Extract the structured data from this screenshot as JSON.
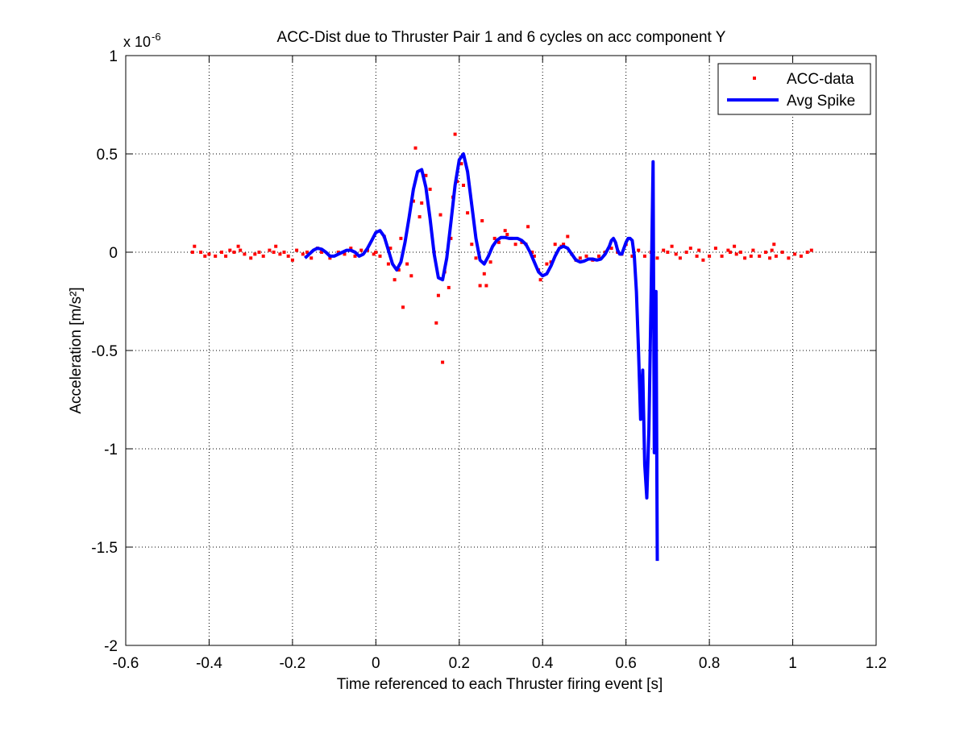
{
  "chart_data": {
    "type": "line",
    "title": "ACC-Dist due to Thruster Pair 1 and 6 cycles on acc component Y",
    "xlabel": "Time referenced to each Thruster firing event [s]",
    "ylabel": "Acceleration [m/s²]",
    "y_exponent_label": "x 10",
    "y_exponent_power": "-6",
    "xlim": [
      -0.6,
      1.2
    ],
    "ylim": [
      -2,
      1
    ],
    "y_scale": 1e-06,
    "xticks": [
      -0.6,
      -0.4,
      -0.2,
      0,
      0.2,
      0.4,
      0.6,
      0.8,
      1,
      1.2
    ],
    "xtick_labels": [
      "-0.6",
      "-0.4",
      "-0.2",
      "0",
      "0.2",
      "0.4",
      "0.6",
      "0.8",
      "1",
      "1.2"
    ],
    "yticks": [
      -2,
      -1.5,
      -1,
      -0.5,
      0,
      0.5,
      1
    ],
    "ytick_labels": [
      "-2",
      "-1.5",
      "-1",
      "-0.5",
      "0",
      "0.5",
      "1"
    ],
    "grid": true,
    "legend_position": "top-right",
    "series": [
      {
        "name": "ACC-data",
        "kind": "scatter",
        "color": "#ff0000",
        "points": [
          [
            -0.44,
            0.0
          ],
          [
            -0.435,
            0.03
          ],
          [
            -0.42,
            0.0
          ],
          [
            -0.41,
            -0.02
          ],
          [
            -0.4,
            -0.01
          ],
          [
            -0.385,
            -0.02
          ],
          [
            -0.37,
            0.0
          ],
          [
            -0.36,
            -0.02
          ],
          [
            -0.35,
            0.01
          ],
          [
            -0.34,
            0.0
          ],
          [
            -0.33,
            0.03
          ],
          [
            -0.325,
            0.01
          ],
          [
            -0.315,
            -0.01
          ],
          [
            -0.3,
            -0.03
          ],
          [
            -0.29,
            -0.01
          ],
          [
            -0.28,
            0.0
          ],
          [
            -0.27,
            -0.02
          ],
          [
            -0.255,
            0.01
          ],
          [
            -0.245,
            0.0
          ],
          [
            -0.24,
            0.03
          ],
          [
            -0.23,
            -0.01
          ],
          [
            -0.22,
            0.0
          ],
          [
            -0.21,
            -0.02
          ],
          [
            -0.2,
            -0.04
          ],
          [
            -0.19,
            0.01
          ],
          [
            -0.175,
            -0.01
          ],
          [
            -0.165,
            0.0
          ],
          [
            -0.155,
            -0.03
          ],
          [
            -0.14,
            0.02
          ],
          [
            -0.13,
            0.0
          ],
          [
            -0.11,
            -0.03
          ],
          [
            -0.09,
            0.0
          ],
          [
            -0.075,
            -0.01
          ],
          [
            -0.06,
            0.02
          ],
          [
            -0.05,
            -0.02
          ],
          [
            -0.035,
            0.01
          ],
          [
            -0.02,
            0.01
          ],
          [
            -0.005,
            -0.01
          ],
          [
            0.0,
            0.0
          ],
          [
            0.01,
            -0.02
          ],
          [
            0.02,
            0.08
          ],
          [
            0.03,
            -0.06
          ],
          [
            0.035,
            0.02
          ],
          [
            0.045,
            -0.14
          ],
          [
            0.055,
            -0.09
          ],
          [
            0.06,
            0.07
          ],
          [
            0.065,
            -0.28
          ],
          [
            0.075,
            -0.06
          ],
          [
            0.085,
            -0.12
          ],
          [
            0.09,
            0.26
          ],
          [
            0.095,
            0.53
          ],
          [
            0.105,
            0.18
          ],
          [
            0.11,
            0.25
          ],
          [
            0.12,
            0.39
          ],
          [
            0.13,
            0.32
          ],
          [
            0.14,
            0.0
          ],
          [
            0.145,
            -0.36
          ],
          [
            0.15,
            -0.22
          ],
          [
            0.155,
            0.19
          ],
          [
            0.16,
            -0.56
          ],
          [
            0.165,
            -0.1
          ],
          [
            0.175,
            -0.18
          ],
          [
            0.18,
            0.07
          ],
          [
            0.185,
            0.28
          ],
          [
            0.19,
            0.6
          ],
          [
            0.195,
            0.36
          ],
          [
            0.205,
            0.45
          ],
          [
            0.21,
            0.34
          ],
          [
            0.22,
            0.2
          ],
          [
            0.23,
            0.04
          ],
          [
            0.24,
            -0.03
          ],
          [
            0.25,
            -0.17
          ],
          [
            0.255,
            0.16
          ],
          [
            0.26,
            -0.11
          ],
          [
            0.265,
            -0.17
          ],
          [
            0.275,
            -0.05
          ],
          [
            0.285,
            0.07
          ],
          [
            0.295,
            0.05
          ],
          [
            0.31,
            0.11
          ],
          [
            0.315,
            0.09
          ],
          [
            0.325,
            0.07
          ],
          [
            0.335,
            0.04
          ],
          [
            0.35,
            0.05
          ],
          [
            0.36,
            0.04
          ],
          [
            0.365,
            0.13
          ],
          [
            0.375,
            0.0
          ],
          [
            0.38,
            -0.02
          ],
          [
            0.39,
            -0.09
          ],
          [
            0.395,
            -0.14
          ],
          [
            0.41,
            -0.06
          ],
          [
            0.42,
            -0.05
          ],
          [
            0.43,
            0.04
          ],
          [
            0.445,
            0.03
          ],
          [
            0.45,
            0.04
          ],
          [
            0.46,
            0.08
          ],
          [
            0.47,
            -0.01
          ],
          [
            0.48,
            -0.04
          ],
          [
            0.49,
            -0.03
          ],
          [
            0.505,
            -0.02
          ],
          [
            0.52,
            -0.04
          ],
          [
            0.535,
            -0.02
          ],
          [
            0.55,
            0.0
          ],
          [
            0.565,
            0.02
          ],
          [
            0.58,
            0.0
          ],
          [
            0.59,
            -0.01
          ],
          [
            0.6,
            0.04
          ],
          [
            0.615,
            -0.02
          ],
          [
            0.63,
            0.01
          ],
          [
            0.645,
            -0.02
          ],
          [
            0.66,
            0.0
          ],
          [
            0.675,
            -0.03
          ],
          [
            0.69,
            0.01
          ],
          [
            0.7,
            0.0
          ],
          [
            0.71,
            0.03
          ],
          [
            0.72,
            -0.01
          ],
          [
            0.73,
            -0.03
          ],
          [
            0.745,
            0.0
          ],
          [
            0.755,
            0.02
          ],
          [
            0.77,
            -0.02
          ],
          [
            0.775,
            0.01
          ],
          [
            0.785,
            -0.04
          ],
          [
            0.8,
            -0.02
          ],
          [
            0.815,
            0.02
          ],
          [
            0.83,
            -0.02
          ],
          [
            0.845,
            0.01
          ],
          [
            0.85,
            0.0
          ],
          [
            0.86,
            0.03
          ],
          [
            0.865,
            -0.01
          ],
          [
            0.875,
            0.0
          ],
          [
            0.885,
            -0.03
          ],
          [
            0.9,
            -0.02
          ],
          [
            0.905,
            0.01
          ],
          [
            0.92,
            -0.02
          ],
          [
            0.935,
            0.0
          ],
          [
            0.945,
            -0.03
          ],
          [
            0.95,
            0.01
          ],
          [
            0.955,
            0.04
          ],
          [
            0.96,
            -0.02
          ],
          [
            0.975,
            0.0
          ],
          [
            0.99,
            -0.03
          ],
          [
            1.005,
            -0.01
          ],
          [
            1.02,
            -0.02
          ],
          [
            1.035,
            0.0
          ],
          [
            1.045,
            0.01
          ]
        ]
      },
      {
        "name": "Avg Spike",
        "kind": "line",
        "color": "#0000ff",
        "points": [
          [
            -0.17,
            -0.03
          ],
          [
            -0.16,
            -0.01
          ],
          [
            -0.15,
            0.01
          ],
          [
            -0.14,
            0.02
          ],
          [
            -0.13,
            0.015
          ],
          [
            -0.12,
            0.0
          ],
          [
            -0.11,
            -0.02
          ],
          [
            -0.1,
            -0.02
          ],
          [
            -0.09,
            -0.01
          ],
          [
            -0.08,
            0.0
          ],
          [
            -0.07,
            0.01
          ],
          [
            -0.06,
            0.01
          ],
          [
            -0.05,
            0.0
          ],
          [
            -0.04,
            -0.02
          ],
          [
            -0.03,
            -0.01
          ],
          [
            -0.02,
            0.02
          ],
          [
            -0.01,
            0.06
          ],
          [
            0.0,
            0.1
          ],
          [
            0.01,
            0.11
          ],
          [
            0.02,
            0.08
          ],
          [
            0.03,
            0.01
          ],
          [
            0.04,
            -0.06
          ],
          [
            0.05,
            -0.09
          ],
          [
            0.06,
            -0.05
          ],
          [
            0.07,
            0.05
          ],
          [
            0.08,
            0.18
          ],
          [
            0.09,
            0.32
          ],
          [
            0.1,
            0.41
          ],
          [
            0.11,
            0.42
          ],
          [
            0.12,
            0.33
          ],
          [
            0.13,
            0.17
          ],
          [
            0.14,
            -0.01
          ],
          [
            0.15,
            -0.13
          ],
          [
            0.16,
            -0.14
          ],
          [
            0.17,
            -0.03
          ],
          [
            0.18,
            0.15
          ],
          [
            0.19,
            0.34
          ],
          [
            0.2,
            0.47
          ],
          [
            0.21,
            0.5
          ],
          [
            0.22,
            0.41
          ],
          [
            0.23,
            0.24
          ],
          [
            0.24,
            0.07
          ],
          [
            0.25,
            -0.04
          ],
          [
            0.26,
            -0.06
          ],
          [
            0.27,
            -0.02
          ],
          [
            0.28,
            0.03
          ],
          [
            0.29,
            0.06
          ],
          [
            0.3,
            0.075
          ],
          [
            0.31,
            0.075
          ],
          [
            0.32,
            0.07
          ],
          [
            0.33,
            0.07
          ],
          [
            0.34,
            0.07
          ],
          [
            0.35,
            0.06
          ],
          [
            0.36,
            0.04
          ],
          [
            0.37,
            0.0
          ],
          [
            0.38,
            -0.05
          ],
          [
            0.39,
            -0.1
          ],
          [
            0.4,
            -0.12
          ],
          [
            0.41,
            -0.11
          ],
          [
            0.42,
            -0.07
          ],
          [
            0.43,
            -0.02
          ],
          [
            0.44,
            0.02
          ],
          [
            0.45,
            0.03
          ],
          [
            0.46,
            0.02
          ],
          [
            0.47,
            -0.01
          ],
          [
            0.48,
            -0.04
          ],
          [
            0.49,
            -0.05
          ],
          [
            0.5,
            -0.045
          ],
          [
            0.51,
            -0.035
          ],
          [
            0.52,
            -0.035
          ],
          [
            0.53,
            -0.04
          ],
          [
            0.54,
            -0.035
          ],
          [
            0.55,
            -0.01
          ],
          [
            0.56,
            0.03
          ],
          [
            0.565,
            0.06
          ],
          [
            0.57,
            0.07
          ],
          [
            0.575,
            0.05
          ],
          [
            0.58,
            0.01
          ],
          [
            0.585,
            -0.01
          ],
          [
            0.59,
            -0.01
          ],
          [
            0.595,
            0.02
          ],
          [
            0.6,
            0.05
          ],
          [
            0.605,
            0.07
          ],
          [
            0.61,
            0.07
          ],
          [
            0.615,
            0.06
          ],
          [
            0.62,
            -0.02
          ],
          [
            0.625,
            -0.2
          ],
          [
            0.63,
            -0.5
          ],
          [
            0.635,
            -0.85
          ],
          [
            0.64,
            -0.6
          ],
          [
            0.645,
            -1.08
          ],
          [
            0.65,
            -1.25
          ],
          [
            0.655,
            -0.9
          ],
          [
            0.66,
            -0.25
          ],
          [
            0.665,
            0.46
          ],
          [
            0.668,
            -1.02
          ],
          [
            0.672,
            -0.2
          ],
          [
            0.675,
            -1.57
          ]
        ]
      }
    ]
  }
}
